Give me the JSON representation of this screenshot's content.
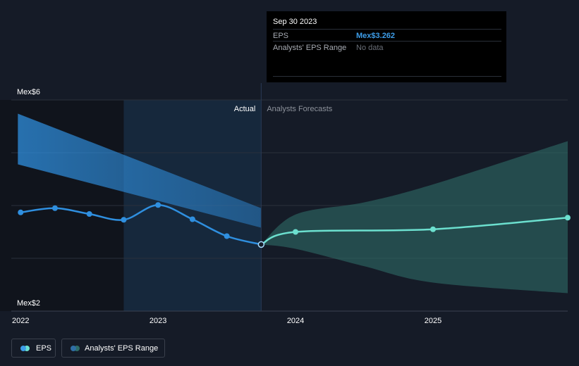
{
  "chart_data": {
    "type": "line",
    "y_axis": {
      "top_label": "Mex$6",
      "bottom_label": "Mex$2",
      "ylim": [
        2,
        6
      ]
    },
    "x_ticks": [
      {
        "label": "2022",
        "x": 2022.0
      },
      {
        "label": "2023",
        "x": 2023.0
      },
      {
        "label": "2024",
        "x": 2024.0
      },
      {
        "label": "2025",
        "x": 2025.0
      }
    ],
    "xlim": [
      2021.85,
      2025.98
    ],
    "divider": {
      "x": 2023.75,
      "actual_label": "Actual",
      "forecast_label": "Analysts Forecasts"
    },
    "highlight_start": 2022.75,
    "series": [
      {
        "name": "EPS",
        "kind": "actual",
        "color": "#2f8fdf",
        "points": [
          [
            2022.0,
            3.87
          ],
          [
            2022.25,
            3.95
          ],
          [
            2022.5,
            3.84
          ],
          [
            2022.75,
            3.73
          ],
          [
            2023.0,
            4.01
          ],
          [
            2023.25,
            3.74
          ],
          [
            2023.5,
            3.42
          ],
          [
            2023.75,
            3.262
          ]
        ]
      },
      {
        "name": "EPS Forecast",
        "kind": "forecast",
        "color": "#6ce0cf",
        "points": [
          [
            2023.75,
            3.262
          ],
          [
            2024.0,
            3.5
          ],
          [
            2025.0,
            3.55
          ],
          [
            2025.98,
            3.77
          ]
        ]
      }
    ],
    "past_range": {
      "color": "#2f8fdf",
      "upper": [
        [
          2021.98,
          5.74
        ],
        [
          2023.75,
          3.95
        ]
      ],
      "lower": [
        [
          2021.98,
          4.78
        ],
        [
          2023.75,
          3.58
        ]
      ]
    },
    "forecast_range": {
      "color": "#2e6d68",
      "upper": [
        [
          2023.75,
          3.262
        ],
        [
          2024.0,
          3.83
        ],
        [
          2024.5,
          4.06
        ],
        [
          2025.0,
          4.4
        ],
        [
          2025.98,
          5.22
        ]
      ],
      "lower": [
        [
          2023.75,
          3.262
        ],
        [
          2024.0,
          3.18
        ],
        [
          2024.5,
          2.85
        ],
        [
          2025.0,
          2.54
        ],
        [
          2025.98,
          2.34
        ]
      ]
    }
  },
  "tooltip": {
    "date": "Sep 30 2023",
    "eps_label": "EPS",
    "eps_value": "Mex$3.262",
    "range_label": "Analysts' EPS Range",
    "range_value": "No data"
  },
  "legend": {
    "eps_label": "EPS",
    "range_label": "Analysts' EPS Range",
    "eps_color_a": "#3d9de8",
    "eps_color_b": "#6ce0cf",
    "range_color_a": "#2f6fa5",
    "range_color_b": "#2e6d68"
  }
}
